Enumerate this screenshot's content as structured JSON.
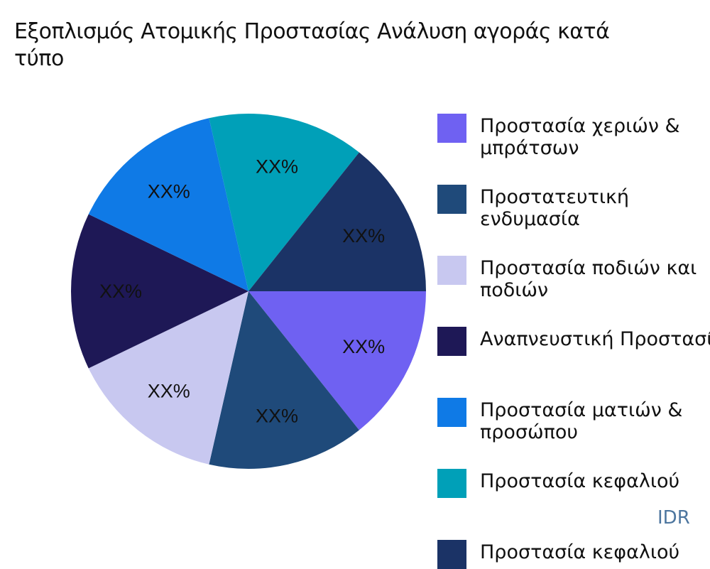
{
  "chart_data": {
    "type": "pie",
    "title_lines": [
      "Εξοπλισμός Ατομικής Προστασίας Ανάλυση αγοράς κατά",
      "τύπο"
    ],
    "categories": [
      "Προστασία χεριών & μπράτσων",
      "Προστατευτική ενδυμασία",
      "Προστασία ποδιών και ποδιών",
      "Αναπνευστική Προστασία",
      "Προστασία ματιών & προσώπου",
      "Προστασία κεφαλιού",
      "Προστασία κεφαλιού"
    ],
    "legend_lines": [
      [
        "Προστασία χεριών &",
        "μπράτσων"
      ],
      [
        "Προστατευτική",
        "ενδυμασία"
      ],
      [
        "Προστασία ποδιών και",
        "ποδιών"
      ],
      [
        "Αναπνευστική Προστασία"
      ],
      [
        "Προστασία ματιών &",
        "προσώπου"
      ],
      [
        "Προστασία κεφαλιού"
      ],
      [
        "Προστασία κεφαλιού"
      ]
    ],
    "values": [
      1,
      1,
      1,
      1,
      1,
      1,
      1
    ],
    "data_labels": [
      "XX%",
      "XX%",
      "XX%",
      "XX%",
      "XX%",
      "XX%",
      "XX%"
    ],
    "colors": [
      "#6F61F2",
      "#1F4A7A",
      "#C8C8F0",
      "#1E1856",
      "#0F7AE6",
      "#00A0B8",
      "#1B3366"
    ],
    "start_angle": "east, clockwise",
    "legend_placement": "right"
  },
  "watermark": "IDR"
}
